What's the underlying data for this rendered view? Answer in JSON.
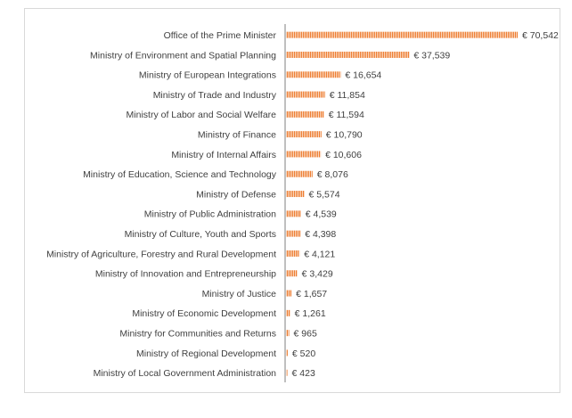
{
  "chart_data": {
    "type": "bar",
    "orientation": "horizontal",
    "title": "",
    "xlabel": "",
    "ylabel": "",
    "bar_color": "#ed7d31",
    "bar_pattern": "dashed-vertical",
    "axis_color": "#7f7f7f",
    "grid": false,
    "legend": "none",
    "currency_prefix": "€",
    "xlim": [
      0,
      70542
    ],
    "categories": [
      "Office of the Prime Minister",
      "Ministry of Environment and Spatial Planning",
      "Ministry of European Integrations",
      "Ministry of Trade and Industry",
      "Ministry of Labor and Social Welfare",
      "Ministry of Finance",
      "Ministry of Internal Affairs",
      "Ministry of Education, Science and Technology",
      "Ministry of Defense",
      "Ministry of Public Administration",
      "Ministry of Culture, Youth and Sports",
      "Ministry of Agriculture, Forestry and Rural Development",
      "Ministry of Innovation and Entrepreneurship",
      "Ministry of Justice",
      "Ministry of Economic Development",
      "Ministry for Communities and Returns",
      "Ministry of Regional Development",
      "Ministry of Local Government Administration"
    ],
    "values": [
      70542,
      37539,
      16654,
      11854,
      11594,
      10790,
      10606,
      8076,
      5574,
      4539,
      4398,
      4121,
      3429,
      1657,
      1261,
      965,
      520,
      423
    ],
    "value_labels": [
      "€ 70,542",
      "€ 37,539",
      "€ 16,654",
      "€ 11,854",
      "€ 11,594",
      "€ 10,790",
      "€ 10,606",
      "€ 8,076",
      "€ 5,574",
      "€ 4,539",
      "€ 4,398",
      "€ 4,121",
      "€ 3,429",
      "€ 1,657",
      "€ 1,261",
      "€ 965",
      "€ 520",
      "€ 423"
    ]
  }
}
